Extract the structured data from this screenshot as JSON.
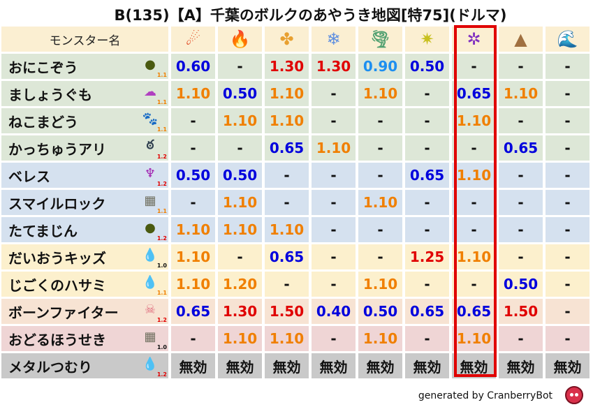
{
  "title": "B(135)【A】千葉のボルクのあやうき地図[特75](ドルマ)",
  "header": {
    "name_label": "モンスター名",
    "elements": [
      {
        "icon": "fireball-icon",
        "glyph": "☄",
        "color": "#e0401a"
      },
      {
        "icon": "flame-icon",
        "glyph": "🔥",
        "color": "#f05020"
      },
      {
        "icon": "explosion-icon",
        "glyph": "✤",
        "color": "#e8a030"
      },
      {
        "icon": "ice-icon",
        "glyph": "❄",
        "color": "#6090e0"
      },
      {
        "icon": "wind-icon",
        "glyph": "🌪",
        "color": "#50a070"
      },
      {
        "icon": "light-icon",
        "glyph": "✷",
        "color": "#c8c020"
      },
      {
        "icon": "dark-icon",
        "glyph": "✲",
        "color": "#8030c0"
      },
      {
        "icon": "earth-icon",
        "glyph": "▲",
        "color": "#a07040"
      },
      {
        "icon": "water-icon",
        "glyph": "🌊",
        "color": "#2060d0"
      }
    ]
  },
  "highlight_column": 6,
  "palette": {
    "blue": "#0000dd",
    "lightblue": "#1e8ff0",
    "orange": "#f07f00",
    "red": "#e00000",
    "black": "#111111"
  },
  "row_colors": {
    "green": "#dde7d7",
    "blue": "#d5e1ef",
    "yellow": "#fcf0cd",
    "peach": "#f7e3d3",
    "pink": "#efd5d5",
    "gray": "#c9c9c9"
  },
  "rows": [
    {
      "name": "おにこぞう",
      "icon": "slime-green-icon",
      "glyph": "●",
      "icon_color": "#4a5a10",
      "ver": "1.1",
      "ver_color": "#f07f00",
      "bg": "green",
      "values": [
        "0.60",
        "-",
        "1.30",
        "1.30",
        "0.90",
        "0.50",
        "-",
        "-",
        "-"
      ]
    },
    {
      "name": "ましょうぐも",
      "icon": "cloud-monster-icon",
      "glyph": "☁",
      "icon_color": "#b040c0",
      "ver": "1.1",
      "ver_color": "#f07f00",
      "bg": "green",
      "values": [
        "1.10",
        "0.50",
        "1.10",
        "-",
        "1.10",
        "-",
        "0.65",
        "1.10",
        "-"
      ]
    },
    {
      "name": "ねこまどう",
      "icon": "paw-icon",
      "glyph": "🐾",
      "icon_color": "#e08020",
      "ver": "1.1",
      "ver_color": "#f07f00",
      "bg": "green",
      "values": [
        "-",
        "1.10",
        "1.10",
        "-",
        "-",
        "-",
        "1.10",
        "-",
        "-"
      ]
    },
    {
      "name": "かっちゅうアリ",
      "icon": "insect-icon",
      "glyph": "ఠ",
      "icon_color": "#304050",
      "ver": "1.2",
      "ver_color": "#e00000",
      "bg": "green",
      "values": [
        "-",
        "-",
        "0.65",
        "1.10",
        "-",
        "-",
        "-",
        "0.65",
        "-"
      ]
    },
    {
      "name": "ベレス",
      "icon": "demon-trident-icon",
      "glyph": "♆",
      "icon_color": "#a020b0",
      "ver": "1.2",
      "ver_color": "#e00000",
      "bg": "blue",
      "values": [
        "0.50",
        "0.50",
        "-",
        "-",
        "-",
        "0.65",
        "1.10",
        "-",
        "-"
      ]
    },
    {
      "name": "スマイルロック",
      "icon": "brick-icon",
      "glyph": "▦",
      "icon_color": "#707060",
      "ver": "1.1",
      "ver_color": "#f07f00",
      "bg": "blue",
      "values": [
        "-",
        "1.10",
        "-",
        "-",
        "1.10",
        "-",
        "-",
        "-",
        "-"
      ]
    },
    {
      "name": "たてまじん",
      "icon": "slime-green-icon",
      "glyph": "●",
      "icon_color": "#4a5a10",
      "ver": "1.2",
      "ver_color": "#e00000",
      "bg": "blue",
      "values": [
        "1.10",
        "1.10",
        "1.10",
        "-",
        "-",
        "-",
        "-",
        "-",
        "-"
      ]
    },
    {
      "name": "だいおうキッズ",
      "icon": "water-drop-icon",
      "glyph": "💧",
      "icon_color": "#3090e0",
      "ver": "1.0",
      "ver_color": "#111111",
      "bg": "yellow",
      "values": [
        "1.10",
        "-",
        "0.65",
        "-",
        "-",
        "1.25",
        "1.10",
        "-",
        "-"
      ]
    },
    {
      "name": "じごくのハサミ",
      "icon": "water-drop-icon",
      "glyph": "💧",
      "icon_color": "#3090e0",
      "ver": "1.1",
      "ver_color": "#f07f00",
      "bg": "yellow",
      "values": [
        "1.10",
        "1.20",
        "-",
        "-",
        "1.10",
        "-",
        "-",
        "0.50",
        "-"
      ]
    },
    {
      "name": "ボーンファイター",
      "icon": "skull-icon",
      "glyph": "☠",
      "icon_color": "#e07080",
      "ver": "1.2",
      "ver_color": "#e00000",
      "bg": "peach",
      "values": [
        "0.65",
        "1.30",
        "1.50",
        "0.40",
        "0.50",
        "0.65",
        "0.65",
        "1.50",
        "-"
      ]
    },
    {
      "name": "おどるほうせき",
      "icon": "brick-icon",
      "glyph": "▦",
      "icon_color": "#707060",
      "ver": "1.0",
      "ver_color": "#111111",
      "bg": "pink",
      "values": [
        "-",
        "1.10",
        "1.10",
        "-",
        "1.10",
        "-",
        "1.10",
        "-",
        "-"
      ]
    },
    {
      "name": "メタルつむり",
      "icon": "slime-blue-icon",
      "glyph": "💧",
      "icon_color": "#2080d0",
      "ver": "1.2",
      "ver_color": "#e00000",
      "bg": "gray",
      "values": [
        "無効",
        "無効",
        "無効",
        "無効",
        "無効",
        "無効",
        "無効",
        "無効",
        "無効"
      ]
    }
  ],
  "footer": "generated by CranberryBot"
}
